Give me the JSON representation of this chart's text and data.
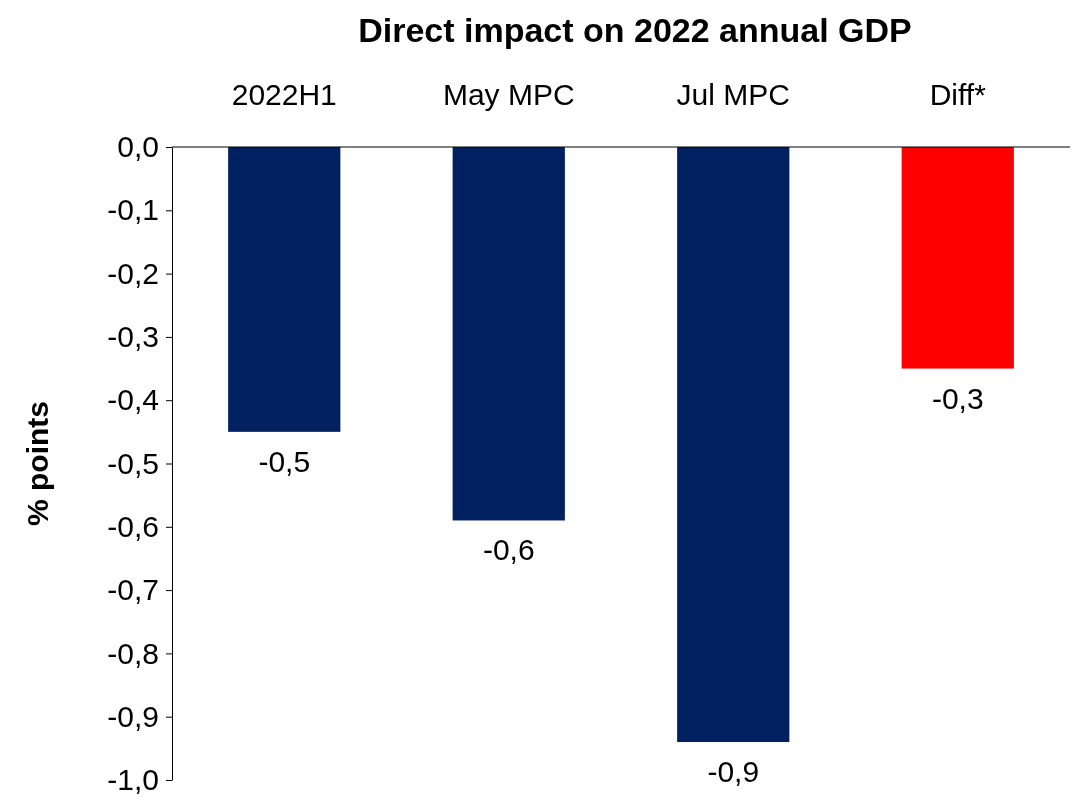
{
  "chart_data": {
    "type": "bar",
    "title": "Direct impact on 2022 annual GDP",
    "ylabel": "% points",
    "categories": [
      "2022H1",
      "May MPC",
      "Jul MPC",
      "Diff*"
    ],
    "values": [
      -0.45,
      -0.59,
      -0.94,
      -0.35
    ],
    "colors": [
      "#002060",
      "#002060",
      "#002060",
      "#ff0000"
    ],
    "value_labels": [
      "-0,5",
      "-0,6",
      "-0,9",
      "-0,3"
    ],
    "ylim": [
      -1.0,
      0
    ],
    "yticks": [
      {
        "value": 0,
        "label": "0,0"
      },
      {
        "value": -0.1,
        "label": "-0,1"
      },
      {
        "value": -0.2,
        "label": "-0,2"
      },
      {
        "value": -0.3,
        "label": "-0,3"
      },
      {
        "value": -0.4,
        "label": "-0,4"
      },
      {
        "value": -0.5,
        "label": "-0,5"
      },
      {
        "value": -0.6,
        "label": "-0,6"
      },
      {
        "value": -0.7,
        "label": "-0,7"
      },
      {
        "value": -0.8,
        "label": "-0,8"
      },
      {
        "value": -0.9,
        "label": "-0,9"
      },
      {
        "value": -1.0,
        "label": "-1,0"
      }
    ],
    "grid": false
  }
}
